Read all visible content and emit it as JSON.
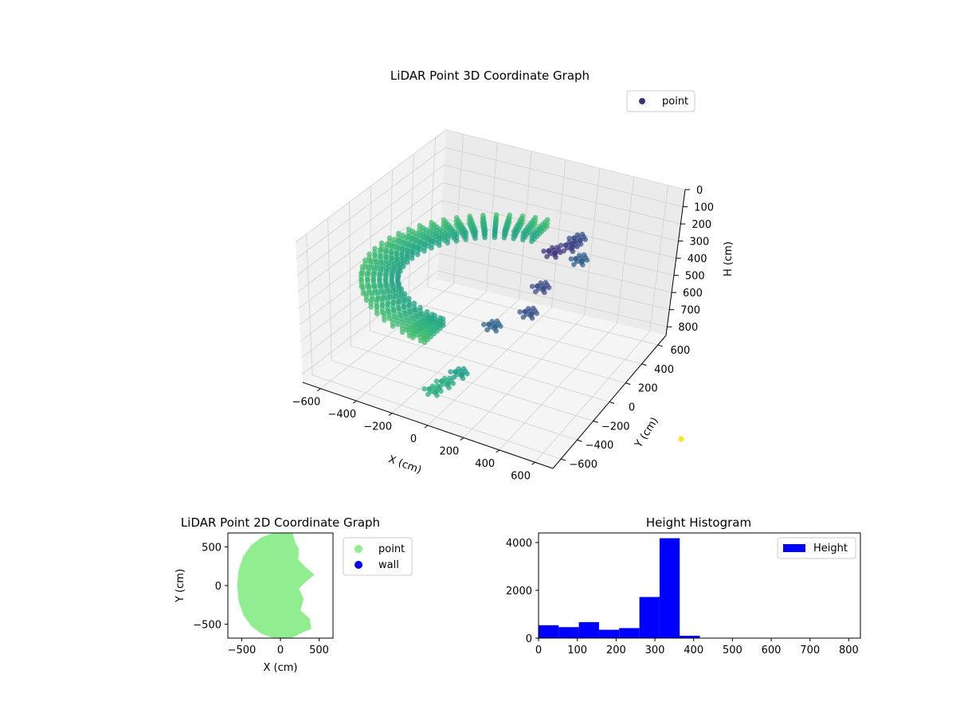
{
  "chart_data": [
    {
      "type": "scatter",
      "projection": "3d",
      "title": "LiDAR Point 3D Coordinate Graph",
      "xlabel": "X (cm)",
      "ylabel": "Y (cm)",
      "zlabel": "H (cm)",
      "xlim": [
        -700,
        700
      ],
      "ylim": [
        -700,
        700
      ],
      "zlim": [
        0,
        850
      ],
      "z_inverted": true,
      "xticks": [
        -600,
        -400,
        -200,
        0,
        200,
        400,
        600
      ],
      "yticks": [
        -600,
        -400,
        -200,
        0,
        200,
        400,
        600
      ],
      "zticks": [
        0,
        100,
        200,
        300,
        400,
        500,
        600,
        700,
        800
      ],
      "grid": true,
      "colormap": "viridis",
      "legend": {
        "entries": [
          "point"
        ],
        "placement": "top-right",
        "marker_color": "#472c7a"
      },
      "series": [
        {
          "name": "point",
          "shape": "half-ring of points around the sensor, opening toward +X",
          "ring_radius_range": [
            470,
            650
          ],
          "ring_angle_range_deg": [
            -100,
            90
          ],
          "ring_height_range": [
            320,
            360
          ],
          "features": [
            {
              "x": 300,
              "y": 80,
              "h": 120
            },
            {
              "x": 320,
              "y": 220,
              "h": 160
            },
            {
              "x": 350,
              "y": -120,
              "h": 200
            },
            {
              "x": 280,
              "y": 380,
              "h": 220
            },
            {
              "x": 380,
              "y": -300,
              "h": 240
            },
            {
              "x": 340,
              "y": 300,
              "h": 280
            },
            {
              "x": 240,
              "y": -420,
              "h": 300
            },
            {
              "x": 120,
              "y": -560,
              "h": 560
            },
            {
              "x": 60,
              "y": -600,
              "h": 620
            },
            {
              "x": 0,
              "y": -620,
              "h": 680
            }
          ]
        }
      ],
      "colorbar_marker_color": "#fde725"
    },
    {
      "type": "scatter",
      "title": "LiDAR Point 2D Coordinate Graph",
      "xlabel": "X (cm)",
      "ylabel": "Y (cm)",
      "xlim": [
        -680,
        680
      ],
      "ylim": [
        -680,
        680
      ],
      "xticks": [
        -500,
        0,
        500
      ],
      "yticks": [
        -500,
        0,
        500
      ],
      "legend": {
        "placement": "outside-right",
        "entries": [
          {
            "name": "point",
            "color": "#90ee90"
          },
          {
            "name": "wall",
            "color": "#0000ff"
          }
        ]
      },
      "point_region_outline": [
        [
          0,
          680
        ],
        [
          -120,
          670
        ],
        [
          -250,
          620
        ],
        [
          -380,
          520
        ],
        [
          -480,
          380
        ],
        [
          -540,
          200
        ],
        [
          -560,
          0
        ],
        [
          -540,
          -200
        ],
        [
          -480,
          -380
        ],
        [
          -380,
          -520
        ],
        [
          -250,
          -620
        ],
        [
          -120,
          -670
        ],
        [
          0,
          -690
        ],
        [
          120,
          -690
        ],
        [
          200,
          -650
        ],
        [
          300,
          -600
        ],
        [
          400,
          -560
        ],
        [
          380,
          -430
        ],
        [
          260,
          -320
        ],
        [
          300,
          -170
        ],
        [
          240,
          -40
        ],
        [
          340,
          60
        ],
        [
          440,
          140
        ],
        [
          300,
          260
        ],
        [
          230,
          340
        ],
        [
          240,
          470
        ],
        [
          190,
          560
        ],
        [
          160,
          680
        ]
      ]
    },
    {
      "type": "bar",
      "subtype": "histogram",
      "title": "Height Histogram",
      "xlim": [
        0,
        830
      ],
      "ylim": [
        0,
        4400
      ],
      "xticks": [
        0,
        100,
        200,
        300,
        400,
        500,
        600,
        700,
        800
      ],
      "yticks": [
        0,
        2000,
        4000
      ],
      "bar_color": "#0000ff",
      "legend": {
        "placement": "top-right",
        "entries": [
          "Height"
        ]
      },
      "bin_edges": [
        0,
        52,
        104,
        156,
        208,
        260,
        312,
        364,
        416,
        468,
        520,
        572,
        624,
        676,
        728,
        780,
        832
      ],
      "series": [
        {
          "name": "Height",
          "values": [
            540,
            460,
            670,
            350,
            420,
            1720,
            4180,
            100,
            15,
            8,
            6,
            4,
            3,
            2,
            2,
            1
          ]
        }
      ]
    }
  ]
}
